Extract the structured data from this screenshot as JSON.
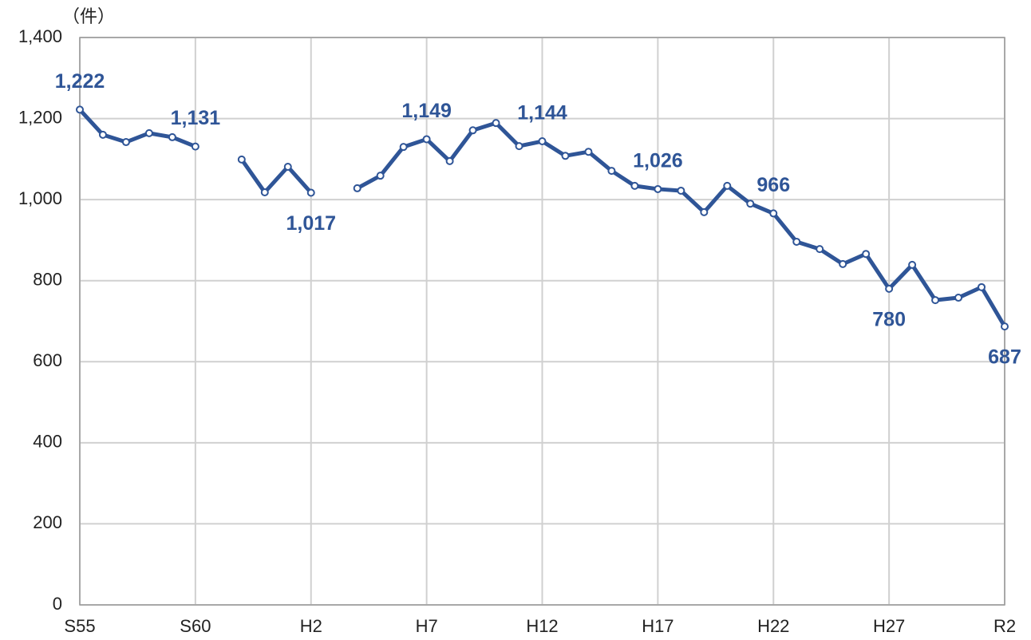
{
  "chart_data": {
    "type": "line",
    "unit_label": "（件）",
    "categories": [
      "S55",
      null,
      null,
      null,
      null,
      "S60",
      null,
      null,
      null,
      null,
      "H2",
      null,
      null,
      null,
      null,
      "H7",
      null,
      null,
      null,
      null,
      "H12",
      null,
      null,
      null,
      null,
      "H17",
      null,
      null,
      null,
      null,
      "H22",
      null,
      null,
      null,
      null,
      "H27",
      null,
      null,
      null,
      null,
      "R2"
    ],
    "series": [
      {
        "color": "#2f5597",
        "values": [
          1222,
          1160,
          1142,
          1164,
          1154,
          1131,
          null,
          1099,
          1018,
          1081,
          1017,
          null,
          1028,
          1059,
          1130,
          1149,
          1095,
          1171,
          1189,
          1132,
          1144,
          1108,
          1118,
          1071,
          1034,
          1026,
          1022,
          969,
          1034,
          990,
          966,
          896,
          878,
          841,
          866,
          780,
          839,
          752,
          758,
          784,
          687
        ],
        "value_labels": [
          "1,222",
          null,
          null,
          null,
          null,
          "1,131",
          null,
          null,
          null,
          null,
          "1,017",
          null,
          null,
          null,
          null,
          "1,149",
          null,
          null,
          null,
          null,
          "1,144",
          null,
          null,
          null,
          null,
          "1,026",
          null,
          null,
          null,
          null,
          "966",
          null,
          null,
          null,
          null,
          "780",
          null,
          null,
          null,
          null,
          "687"
        ]
      }
    ],
    "ylim": [
      0,
      1400
    ],
    "yticks": [
      0,
      200,
      400,
      600,
      800,
      {
        "value": 1000,
        "label": "1,000"
      },
      {
        "value": 1200,
        "label": "1,200"
      },
      {
        "value": 1400,
        "label": "1,400"
      }
    ],
    "grid": true
  }
}
